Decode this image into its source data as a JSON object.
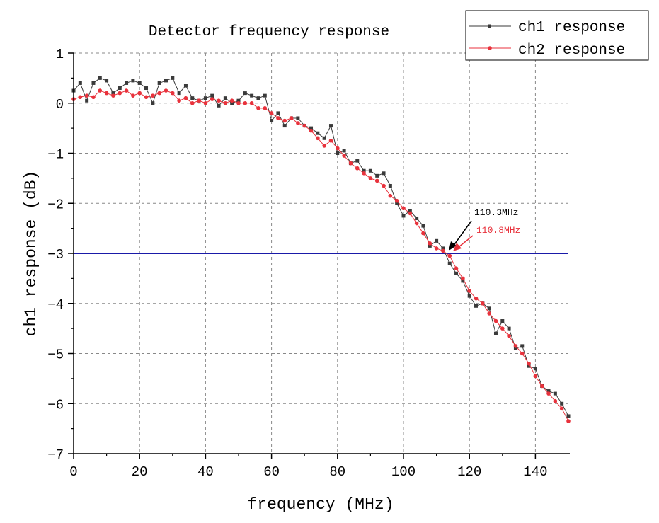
{
  "chart_data": {
    "type": "line",
    "title": "Detector frequency response",
    "xlabel": "frequency (MHz)",
    "ylabel": "ch1 response (dB)",
    "xlim": [
      0,
      150
    ],
    "ylim": [
      -7,
      1
    ],
    "xticks": [
      0,
      20,
      40,
      60,
      80,
      100,
      120,
      140
    ],
    "xtick_labels": [
      "0",
      "20",
      "40",
      "60",
      "80",
      "100",
      "120",
      "140"
    ],
    "yticks": [
      1,
      0,
      -1,
      -2,
      -3,
      -4,
      -5,
      -6,
      -7
    ],
    "ytick_labels": [
      "1",
      "0",
      "−1",
      "−2",
      "−3",
      "−4",
      "−5",
      "−6",
      "−7"
    ],
    "grid": true,
    "legend_position": "top-right",
    "x": [
      0,
      2,
      4,
      6,
      8,
      10,
      12,
      14,
      16,
      18,
      20,
      22,
      24,
      26,
      28,
      30,
      32,
      34,
      36,
      38,
      40,
      42,
      44,
      46,
      48,
      50,
      52,
      54,
      56,
      58,
      60,
      62,
      64,
      66,
      68,
      70,
      72,
      74,
      76,
      78,
      80,
      82,
      84,
      86,
      88,
      90,
      92,
      94,
      96,
      98,
      100,
      102,
      104,
      106,
      108,
      110,
      112,
      114,
      116,
      118,
      120,
      122,
      124,
      126,
      128,
      130,
      132,
      134,
      136,
      138,
      140,
      142,
      144,
      146,
      148,
      150
    ],
    "series": [
      {
        "name": "ch1 response",
        "color": "#3a3a3a",
        "marker": "square",
        "values": [
          0.25,
          0.4,
          0.05,
          0.4,
          0.5,
          0.45,
          0.2,
          0.3,
          0.4,
          0.45,
          0.4,
          0.3,
          0.0,
          0.4,
          0.45,
          0.5,
          0.2,
          0.35,
          0.1,
          0.05,
          0.1,
          0.15,
          -0.05,
          0.1,
          0.0,
          0.05,
          0.2,
          0.15,
          0.1,
          0.15,
          -0.35,
          -0.2,
          -0.45,
          -0.3,
          -0.3,
          -0.45,
          -0.5,
          -0.6,
          -0.7,
          -0.45,
          -1.0,
          -0.95,
          -1.2,
          -1.15,
          -1.35,
          -1.35,
          -1.45,
          -1.4,
          -1.65,
          -2.0,
          -2.25,
          -2.15,
          -2.3,
          -2.45,
          -2.85,
          -2.75,
          -2.9,
          -3.2,
          -3.4,
          -3.55,
          -3.85,
          -4.05,
          -4.0,
          -4.1,
          -4.6,
          -4.35,
          -4.5,
          -4.9,
          -4.85,
          -5.25,
          -5.3,
          -5.65,
          -5.75,
          -5.8,
          -6.0,
          -6.25
        ]
      },
      {
        "name": "ch2 response",
        "color": "#e8323c",
        "marker": "circle",
        "values": [
          0.08,
          0.12,
          0.15,
          0.12,
          0.25,
          0.2,
          0.15,
          0.2,
          0.25,
          0.15,
          0.2,
          0.12,
          0.15,
          0.2,
          0.25,
          0.2,
          0.05,
          0.1,
          0.0,
          0.05,
          0.0,
          0.08,
          0.05,
          0.0,
          0.05,
          0.0,
          0.0,
          0.0,
          -0.1,
          -0.1,
          -0.2,
          -0.3,
          -0.35,
          -0.3,
          -0.4,
          -0.45,
          -0.55,
          -0.7,
          -0.85,
          -0.75,
          -0.9,
          -1.05,
          -1.2,
          -1.3,
          -1.4,
          -1.5,
          -1.55,
          -1.65,
          -1.85,
          -1.95,
          -2.1,
          -2.2,
          -2.4,
          -2.6,
          -2.8,
          -2.9,
          -2.95,
          -3.05,
          -3.3,
          -3.5,
          -3.75,
          -3.9,
          -4.0,
          -4.2,
          -4.35,
          -4.5,
          -4.65,
          -4.85,
          -5.0,
          -5.2,
          -5.45,
          -5.65,
          -5.8,
          -5.95,
          -6.1,
          -6.35
        ]
      }
    ],
    "reference_line": {
      "y": -3,
      "color": "#1a1aa8"
    },
    "annotations": [
      {
        "text": "110.3MHz",
        "color": "#000000"
      },
      {
        "text": "110.8MHz",
        "color": "#e8323c"
      }
    ]
  }
}
